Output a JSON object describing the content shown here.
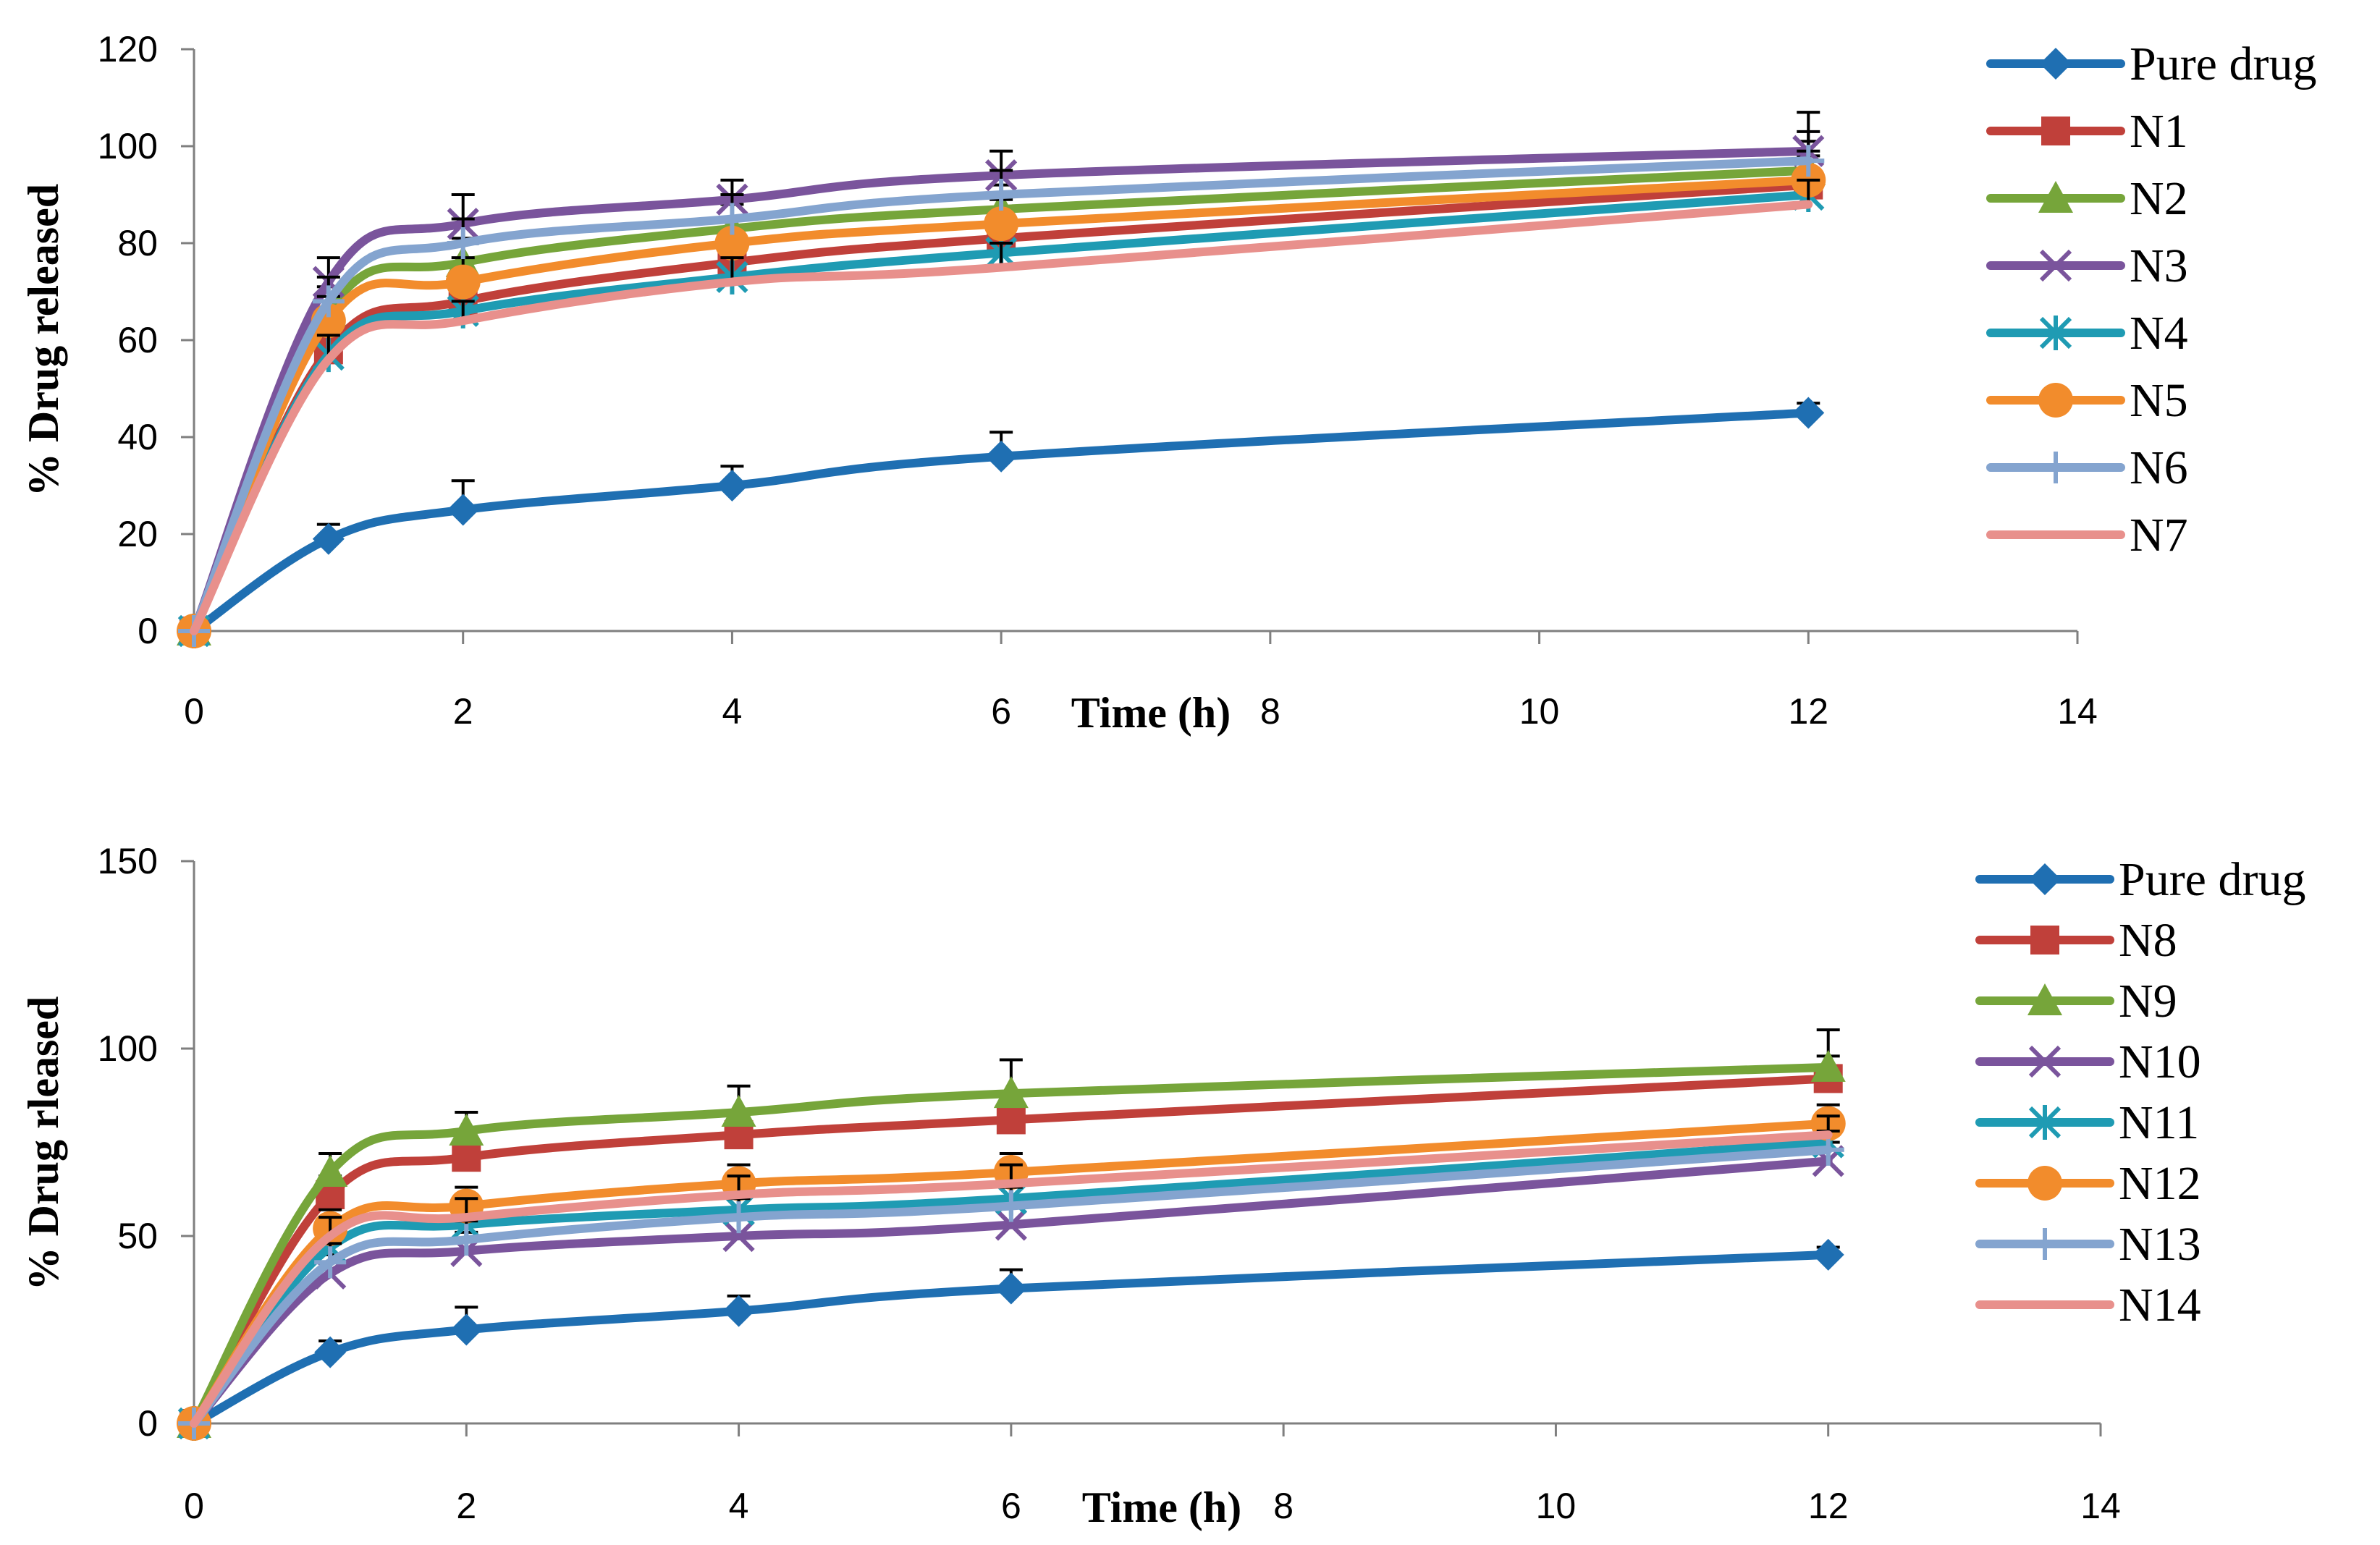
{
  "chart_data": [
    {
      "type": "line",
      "title": "",
      "xlabel": "Time (h)",
      "ylabel": "% Drug released",
      "xlim": [
        0,
        14
      ],
      "ylim": [
        0,
        120
      ],
      "xticks": [
        "0",
        "2",
        "4",
        "6",
        "8",
        "10",
        "12",
        "14"
      ],
      "yticks": [
        "0",
        "20",
        "40",
        "60",
        "80",
        "100",
        "120"
      ],
      "x": [
        0,
        1,
        2,
        4,
        6,
        12
      ],
      "legend_position": "right",
      "series": [
        {
          "name": "Pure drug",
          "color": "#1f6fb2",
          "marker": "diamond",
          "values": [
            0,
            19,
            25,
            30,
            36,
            45
          ],
          "errors": [
            0,
            3,
            6,
            4,
            5,
            2
          ]
        },
        {
          "name": "N1",
          "color": "#c0403a",
          "marker": "square",
          "values": [
            0,
            58,
            68,
            76,
            81,
            92
          ],
          "errors": [
            0,
            5,
            5,
            5,
            5,
            6
          ]
        },
        {
          "name": "N2",
          "color": "#76a53a",
          "marker": "triangle",
          "values": [
            0,
            66,
            76,
            83,
            87,
            95
          ],
          "errors": [
            0,
            5,
            5,
            5,
            5,
            6
          ]
        },
        {
          "name": "N3",
          "color": "#7a549c",
          "marker": "x",
          "values": [
            0,
            72,
            84,
            89,
            94,
            99
          ],
          "errors": [
            0,
            5,
            6,
            4,
            5,
            8
          ]
        },
        {
          "name": "N4",
          "color": "#1f9bb3",
          "marker": "asterisk",
          "values": [
            0,
            57,
            66,
            73,
            78,
            90
          ],
          "errors": [
            0,
            5,
            4,
            5,
            5,
            5
          ]
        },
        {
          "name": "N5",
          "color": "#f28c2c",
          "marker": "circle",
          "values": [
            0,
            64,
            72,
            80,
            84,
            93
          ],
          "errors": [
            0,
            5,
            5,
            5,
            5,
            6
          ]
        },
        {
          "name": "N6",
          "color": "#84a4cf",
          "marker": "plus",
          "values": [
            0,
            68,
            80,
            85,
            90,
            97
          ],
          "errors": [
            0,
            5,
            5,
            5,
            5,
            6
          ]
        },
        {
          "name": "N7",
          "color": "#e8908c",
          "marker": "none",
          "values": [
            0,
            56,
            64,
            72,
            75,
            88
          ],
          "errors": [
            0,
            5,
            4,
            5,
            5,
            5
          ]
        }
      ]
    },
    {
      "type": "line",
      "title": "",
      "xlabel": "Time (h)",
      "ylabel": "% Drug rleased",
      "xlim": [
        0,
        14
      ],
      "ylim": [
        0,
        150
      ],
      "xticks": [
        "0",
        "2",
        "4",
        "6",
        "8",
        "10",
        "12",
        "14"
      ],
      "yticks": [
        "0",
        "50",
        "100",
        "150"
      ],
      "x": [
        0,
        1,
        2,
        4,
        6,
        12
      ],
      "legend_position": "right",
      "series": [
        {
          "name": "Pure drug",
          "color": "#1f6fb2",
          "marker": "diamond",
          "values": [
            0,
            19,
            25,
            30,
            36,
            45
          ],
          "errors": [
            0,
            3,
            6,
            4,
            5,
            2
          ]
        },
        {
          "name": "N8",
          "color": "#c0403a",
          "marker": "square",
          "values": [
            0,
            61,
            71,
            77,
            81,
            92
          ],
          "errors": [
            0,
            5,
            5,
            5,
            5,
            6
          ]
        },
        {
          "name": "N9",
          "color": "#76a53a",
          "marker": "triangle",
          "values": [
            0,
            67,
            78,
            83,
            88,
            95
          ],
          "errors": [
            0,
            5,
            5,
            7,
            9,
            10
          ]
        },
        {
          "name": "N10",
          "color": "#7a549c",
          "marker": "x",
          "values": [
            0,
            40,
            46,
            50,
            53,
            70
          ],
          "errors": [
            0,
            5,
            5,
            5,
            5,
            5
          ]
        },
        {
          "name": "N11",
          "color": "#1f9bb3",
          "marker": "asterisk",
          "values": [
            0,
            47,
            53,
            57,
            60,
            75
          ],
          "errors": [
            0,
            5,
            5,
            5,
            5,
            5
          ]
        },
        {
          "name": "N12",
          "color": "#f28c2c",
          "marker": "circle",
          "values": [
            0,
            52,
            58,
            64,
            67,
            80
          ],
          "errors": [
            0,
            5,
            5,
            5,
            5,
            5
          ]
        },
        {
          "name": "N13",
          "color": "#84a4cf",
          "marker": "plus",
          "values": [
            0,
            43,
            49,
            55,
            58,
            73
          ],
          "errors": [
            0,
            5,
            5,
            5,
            5,
            5
          ]
        },
        {
          "name": "N14",
          "color": "#e8908c",
          "marker": "none",
          "values": [
            0,
            50,
            55,
            61,
            64,
            77
          ],
          "errors": [
            0,
            5,
            5,
            5,
            5,
            5
          ]
        }
      ]
    }
  ]
}
